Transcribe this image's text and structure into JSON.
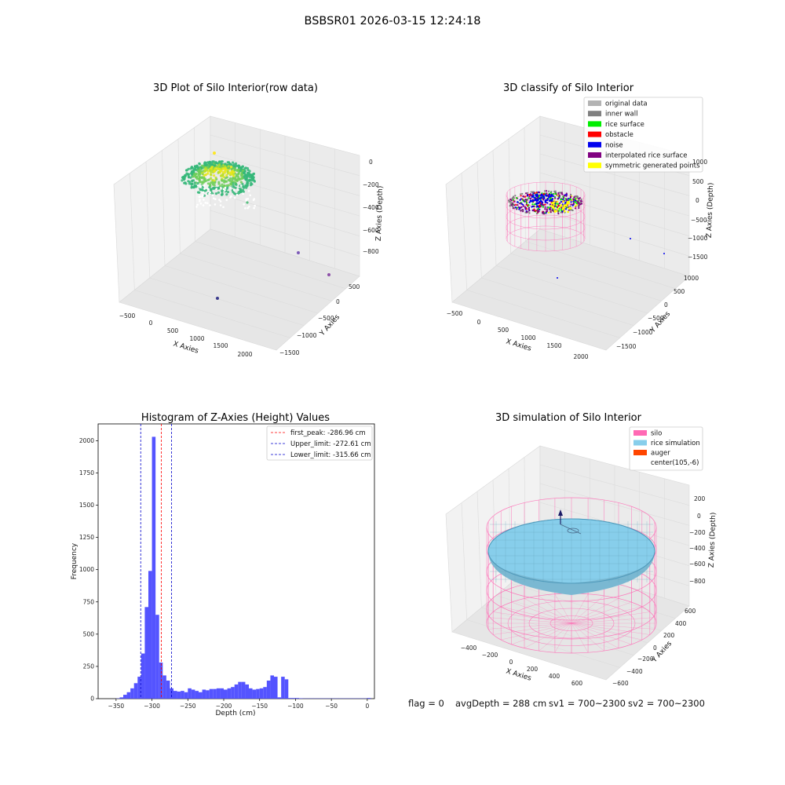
{
  "figure": {
    "suptitle": "BSBSR01 2026-03-15 12:24:18",
    "footer": {
      "flag": "flag = 0",
      "avg": "avgDepth = 288 cm",
      "sv1": "sv1 = 700~2300",
      "sv2": "sv2 = 700~2300"
    }
  },
  "colors": {
    "original": "#b3b3b3",
    "inner_wall": "#808080",
    "rice_surface": "#00ee00",
    "obstacle": "#ff0000",
    "noise": "#0000ee",
    "interpolated": "#800080",
    "symmetric": "#ffff00",
    "hist_bar": "#4b4bff",
    "first_peak": "#ff0000",
    "limit": "#0000cc",
    "silo": "#ff69b4",
    "rice_sim": "#87ceeb",
    "auger": "#ff4500"
  },
  "panels": {
    "raw": {
      "title": "3D Plot of Silo Interior(row data)",
      "xlabel": "X Axies",
      "ylabel": "Y Axies",
      "zlabel": "Z Axies (Depth)",
      "xticks": [
        "−500",
        "0",
        "500",
        "1000",
        "1500",
        "2000"
      ],
      "yticks": [
        "500",
        "0",
        "−500",
        "−1000",
        "−1500"
      ],
      "zticks": [
        "0",
        "−200",
        "−400",
        "−600",
        "−800"
      ]
    },
    "classify": {
      "title": "3D classify of Silo Interior",
      "xlabel": "X Axies",
      "ylabel": "Y Axies",
      "zlabel": "Z Axies (Depth)",
      "xticks": [
        "−500",
        "0",
        "500",
        "1000",
        "1500",
        "2000"
      ],
      "yticks": [
        "1000",
        "500",
        "0",
        "−500",
        "−1000",
        "−1500"
      ],
      "zticks": [
        "1000",
        "500",
        "0",
        "−500",
        "−1000",
        "−1500"
      ],
      "legend": [
        {
          "label": "original data",
          "color_key": "original"
        },
        {
          "label": "inner wall",
          "color_key": "inner_wall"
        },
        {
          "label": "rice surface",
          "color_key": "rice_surface"
        },
        {
          "label": "obstacle",
          "color_key": "obstacle"
        },
        {
          "label": "noise",
          "color_key": "noise"
        },
        {
          "label": "interpolated rice surface",
          "color_key": "interpolated"
        },
        {
          "label": "symmetric generated points",
          "color_key": "symmetric"
        }
      ]
    },
    "simulation": {
      "title": "3D simulation of Silo Interior",
      "xlabel": "X Axies",
      "ylabel": "Y Axies",
      "zlabel": "Z Axies (Depth)",
      "xticks": [
        "−400",
        "−200",
        "0",
        "200",
        "400",
        "600"
      ],
      "yticks": [
        "600",
        "400",
        "200",
        "0",
        "−200",
        "−400",
        "−600"
      ],
      "zticks": [
        "200",
        "0",
        "−200",
        "−400",
        "−600",
        "−800"
      ],
      "legend": [
        {
          "label": "silo",
          "color_key": "silo"
        },
        {
          "label": "rice simulation",
          "color_key": "rice_sim"
        },
        {
          "label": "auger",
          "color_key": "auger"
        },
        {
          "label": "center(105,-6)",
          "color_key": ""
        }
      ]
    }
  },
  "chart_data": {
    "type": "bar",
    "title": "Histogram of Z-Axies (Height) Values",
    "xlabel": "Depth (cm)",
    "ylabel": "Frequency",
    "xlim": [
      -375,
      10
    ],
    "ylim": [
      0,
      2130
    ],
    "xticks": [
      -350,
      -300,
      -250,
      -200,
      -150,
      -100,
      -50,
      0
    ],
    "yticks": [
      0,
      250,
      500,
      750,
      1000,
      1250,
      1500,
      1750,
      2000
    ],
    "bin_width": 5,
    "bin_starts": [
      -350,
      -345,
      -340,
      -335,
      -330,
      -325,
      -320,
      -315,
      -310,
      -305,
      -300,
      -295,
      -290,
      -285,
      -280,
      -275,
      -270,
      -265,
      -260,
      -255,
      -250,
      -245,
      -240,
      -235,
      -230,
      -225,
      -220,
      -215,
      -210,
      -205,
      -200,
      -195,
      -190,
      -185,
      -180,
      -175,
      -170,
      -165,
      -160,
      -155,
      -150,
      -145,
      -140,
      -135,
      -130,
      -125,
      -120,
      -115,
      -110,
      -105,
      -100,
      -95,
      -90,
      -85,
      -80,
      -75,
      -70,
      -65,
      -60,
      -55,
      -50,
      -45,
      -40,
      -35,
      -30,
      -25,
      -20,
      -15,
      -10,
      -5,
      0
    ],
    "values": [
      2,
      10,
      30,
      50,
      80,
      120,
      170,
      350,
      710,
      990,
      2030,
      650,
      280,
      180,
      140,
      80,
      60,
      55,
      60,
      50,
      80,
      70,
      60,
      50,
      70,
      65,
      75,
      75,
      80,
      80,
      70,
      80,
      90,
      110,
      130,
      130,
      110,
      80,
      70,
      75,
      80,
      90,
      140,
      180,
      170,
      10,
      170,
      150,
      5,
      5,
      5,
      3,
      2,
      2,
      2,
      2,
      2,
      2,
      2,
      2,
      2,
      2,
      2,
      2,
      2,
      2,
      2,
      2,
      2,
      2,
      5
    ],
    "vlines": [
      {
        "label": "first_peak: -286.96 cm",
        "x": -286.96,
        "color_key": "first_peak",
        "style": "dashed"
      },
      {
        "label": "Upper_limit: -272.61 cm",
        "x": -272.61,
        "color_key": "limit",
        "style": "dashed"
      },
      {
        "label": "Lower_limit: -315.66 cm",
        "x": -315.66,
        "color_key": "limit",
        "style": "dashed"
      }
    ],
    "legend_position": "top-right"
  }
}
